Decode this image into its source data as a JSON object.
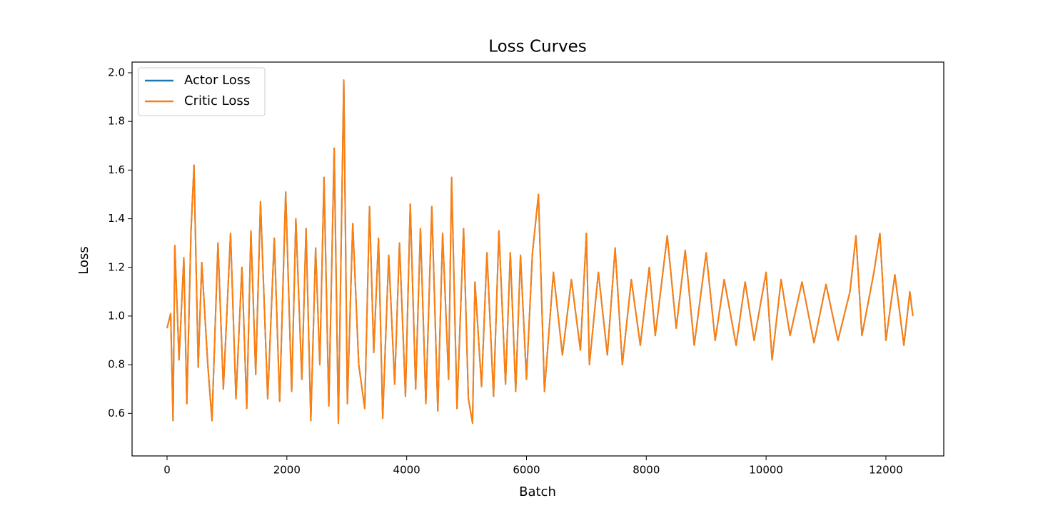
{
  "chart_data": {
    "type": "line",
    "title": "Loss Curves",
    "x_label": "Batch",
    "y_label": "Loss",
    "x": [
      0,
      60,
      100,
      130,
      200,
      280,
      330,
      400,
      450,
      520,
      580,
      680,
      750,
      850,
      940,
      1060,
      1150,
      1250,
      1330,
      1400,
      1480,
      1560,
      1680,
      1790,
      1880,
      1980,
      2080,
      2150,
      2250,
      2320,
      2400,
      2480,
      2550,
      2620,
      2700,
      2790,
      2860,
      2950,
      3010,
      3100,
      3200,
      3300,
      3380,
      3450,
      3530,
      3600,
      3700,
      3800,
      3880,
      3980,
      4060,
      4150,
      4230,
      4320,
      4420,
      4520,
      4600,
      4700,
      4750,
      4840,
      4950,
      5030,
      5100,
      5140,
      5250,
      5340,
      5450,
      5540,
      5650,
      5730,
      5820,
      5900,
      6000,
      6100,
      6200,
      6300,
      6450,
      6600,
      6750,
      6900,
      7000,
      7050,
      7200,
      7350,
      7480,
      7600,
      7750,
      7900,
      8050,
      8150,
      8350,
      8500,
      8650,
      8800,
      9000,
      9150,
      9300,
      9500,
      9650,
      9800,
      10000,
      10100,
      10250,
      10400,
      10600,
      10800,
      11000,
      11200,
      11400,
      11500,
      11600,
      11800,
      11900,
      12000,
      12150,
      12300,
      12400,
      12450
    ],
    "series": [
      {
        "name": "Actor Loss",
        "color": "#1f77b4",
        "values": [
          0.95,
          1.01,
          0.57,
          1.29,
          0.82,
          1.24,
          0.64,
          1.35,
          1.62,
          0.79,
          1.22,
          0.8,
          0.57,
          1.3,
          0.7,
          1.34,
          0.66,
          1.2,
          0.62,
          1.35,
          0.76,
          1.47,
          0.66,
          1.32,
          0.65,
          1.51,
          0.69,
          1.4,
          0.74,
          1.36,
          0.57,
          1.28,
          0.8,
          1.57,
          0.63,
          1.69,
          0.56,
          1.97,
          0.64,
          1.38,
          0.8,
          0.62,
          1.45,
          0.85,
          1.32,
          0.58,
          1.25,
          0.72,
          1.3,
          0.67,
          1.46,
          0.7,
          1.36,
          0.64,
          1.45,
          0.61,
          1.34,
          0.74,
          1.57,
          0.62,
          1.36,
          0.66,
          0.56,
          1.14,
          0.71,
          1.26,
          0.67,
          1.35,
          0.72,
          1.26,
          0.69,
          1.25,
          0.74,
          1.26,
          1.5,
          0.69,
          1.18,
          0.84,
          1.15,
          0.86,
          1.34,
          0.8,
          1.18,
          0.84,
          1.28,
          0.8,
          1.15,
          0.88,
          1.2,
          0.92,
          1.33,
          0.95,
          1.27,
          0.88,
          1.26,
          0.9,
          1.15,
          0.88,
          1.14,
          0.9,
          1.18,
          0.82,
          1.15,
          0.92,
          1.14,
          0.89,
          1.13,
          0.9,
          1.1,
          1.33,
          0.92,
          1.18,
          1.34,
          0.9,
          1.17,
          0.88,
          1.1,
          1.0
        ]
      },
      {
        "name": "Critic Loss",
        "color": "#ff7f0e",
        "values": [
          0.95,
          1.01,
          0.57,
          1.29,
          0.82,
          1.24,
          0.64,
          1.35,
          1.62,
          0.79,
          1.22,
          0.8,
          0.57,
          1.3,
          0.7,
          1.34,
          0.66,
          1.2,
          0.62,
          1.35,
          0.76,
          1.47,
          0.66,
          1.32,
          0.65,
          1.51,
          0.69,
          1.4,
          0.74,
          1.36,
          0.57,
          1.28,
          0.8,
          1.57,
          0.63,
          1.69,
          0.56,
          1.97,
          0.64,
          1.38,
          0.8,
          0.62,
          1.45,
          0.85,
          1.32,
          0.58,
          1.25,
          0.72,
          1.3,
          0.67,
          1.46,
          0.7,
          1.36,
          0.64,
          1.45,
          0.61,
          1.34,
          0.74,
          1.57,
          0.62,
          1.36,
          0.66,
          0.56,
          1.14,
          0.71,
          1.26,
          0.67,
          1.35,
          0.72,
          1.26,
          0.69,
          1.25,
          0.74,
          1.26,
          1.5,
          0.69,
          1.18,
          0.84,
          1.15,
          0.86,
          1.34,
          0.8,
          1.18,
          0.84,
          1.28,
          0.8,
          1.15,
          0.88,
          1.2,
          0.92,
          1.33,
          0.95,
          1.27,
          0.88,
          1.26,
          0.9,
          1.15,
          0.88,
          1.14,
          0.9,
          1.18,
          0.82,
          1.15,
          0.92,
          1.14,
          0.89,
          1.13,
          0.9,
          1.1,
          1.33,
          0.92,
          1.18,
          1.34,
          0.9,
          1.17,
          0.88,
          1.1,
          1.0
        ]
      }
    ],
    "xlim": [
      -584,
      12966
    ],
    "xticks": [
      0,
      2000,
      4000,
      6000,
      8000,
      10000,
      12000
    ],
    "ylim": [
      0.425,
      2.044
    ],
    "yticks": [
      {
        "value": 0.6,
        "label": "0.6"
      },
      {
        "value": 0.8,
        "label": "0.8"
      },
      {
        "value": 1.0,
        "label": "1.0"
      },
      {
        "value": 1.2,
        "label": "1.2"
      },
      {
        "value": 1.4,
        "label": "1.4"
      },
      {
        "value": 1.6,
        "label": "1.6"
      },
      {
        "value": 1.8,
        "label": "1.8"
      },
      {
        "value": 2.0,
        "label": "2.0"
      }
    ],
    "grid": false,
    "legend": "upper left"
  }
}
